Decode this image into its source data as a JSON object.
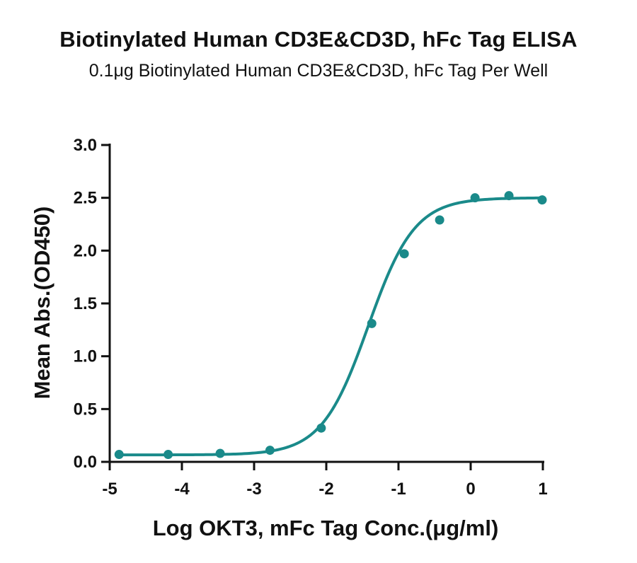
{
  "chart_data": {
    "type": "scatter",
    "title": "Biotinylated Human CD3E&CD3D, hFc Tag ELISA",
    "subtitle": "0.1μg Biotinylated Human CD3E&CD3D, hFc Tag Per Well",
    "xlabel": "Log OKT3, mFc Tag Conc.(μg/ml)",
    "ylabel": "Mean Abs.(OD450)",
    "xlim": [
      -5,
      1
    ],
    "ylim": [
      0,
      3
    ],
    "x_ticks": [
      "-5",
      "-4",
      "-3",
      "-2",
      "-1",
      "0",
      "1"
    ],
    "y_ticks": [
      "0.0",
      "0.5",
      "1.0",
      "1.5",
      "2.0",
      "2.5",
      "3.0"
    ],
    "series": [
      {
        "points": [
          {
            "x": -4.87,
            "y": 0.07
          },
          {
            "x": -4.19,
            "y": 0.07
          },
          {
            "x": -3.47,
            "y": 0.08
          },
          {
            "x": -2.78,
            "y": 0.11
          },
          {
            "x": -2.07,
            "y": 0.32
          },
          {
            "x": -1.37,
            "y": 1.31
          },
          {
            "x": -0.92,
            "y": 1.97
          },
          {
            "x": -0.43,
            "y": 2.29
          },
          {
            "x": 0.06,
            "y": 2.5
          },
          {
            "x": 0.53,
            "y": 2.52
          },
          {
            "x": 0.99,
            "y": 2.48
          }
        ],
        "fit": {
          "model": "4PL",
          "bottom": 0.066,
          "top": 2.5,
          "log_ec50": -1.42,
          "hill_slope": 1.35
        }
      }
    ],
    "grid": false,
    "color": "#1a8a8a"
  }
}
